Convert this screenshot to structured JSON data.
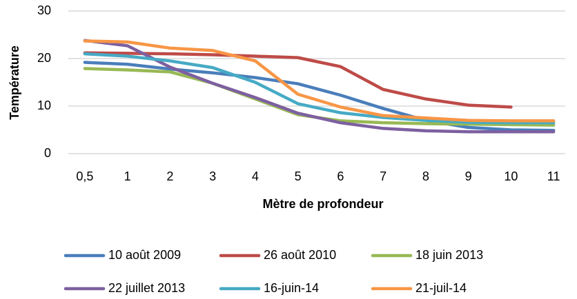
{
  "chart_data": {
    "type": "line",
    "x_label": "Mètre de profondeur",
    "y_label": "Température",
    "categories": [
      "0,5",
      "1",
      "2",
      "3",
      "4",
      "5",
      "6",
      "7",
      "8",
      "9",
      "10",
      "11"
    ],
    "ylim": [
      0,
      30
    ],
    "yticks": [
      0,
      10,
      20,
      30
    ],
    "grid": true,
    "series": [
      {
        "name": "10 août 2009",
        "color": "#4a7ebb",
        "values": [
          19.2,
          18.8,
          17.8,
          17.0,
          16.0,
          14.7,
          12.3,
          9.5,
          7.0,
          5.5,
          5.0,
          4.9
        ]
      },
      {
        "name": "26 août 2010",
        "color": "#be4b48",
        "values": [
          21.2,
          21.1,
          21.0,
          20.8,
          20.5,
          20.2,
          18.3,
          13.5,
          11.5,
          10.2,
          9.8,
          null
        ]
      },
      {
        "name": "18 juin 2013",
        "color": "#98b954",
        "values": [
          17.9,
          17.6,
          17.2,
          14.8,
          11.5,
          8.2,
          6.9,
          6.5,
          6.3,
          6.2,
          6.1,
          6.0
        ]
      },
      {
        "name": "22 juillet 2013",
        "color": "#7d60a0",
        "values": [
          23.8,
          22.7,
          18.2,
          14.8,
          11.8,
          8.5,
          6.5,
          5.3,
          4.8,
          4.6,
          4.6,
          4.6
        ]
      },
      {
        "name": "16-juin-14",
        "color": "#46aac5",
        "values": [
          21.0,
          20.5,
          19.5,
          18.1,
          15.0,
          10.5,
          8.6,
          7.6,
          7.0,
          6.6,
          6.5,
          6.5
        ]
      },
      {
        "name": "21-juil-14",
        "color": "#f79646",
        "values": [
          23.7,
          23.5,
          22.2,
          21.7,
          19.5,
          12.5,
          9.8,
          8.0,
          7.5,
          7.0,
          6.9,
          6.9
        ]
      }
    ]
  }
}
